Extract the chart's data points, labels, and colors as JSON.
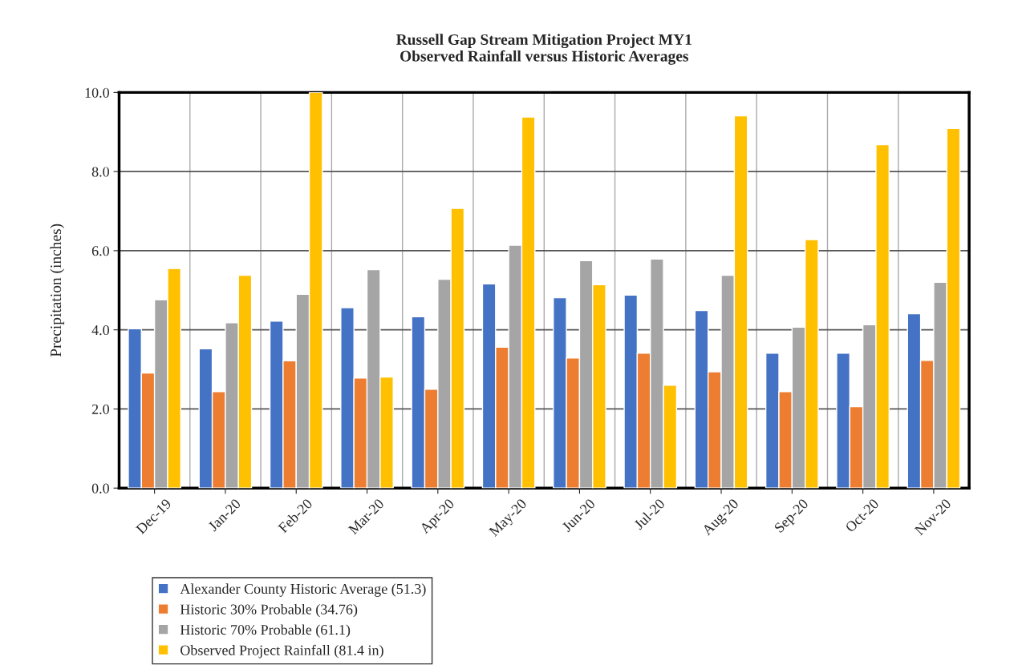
{
  "chart_data": {
    "type": "bar",
    "title": "Russell Gap Stream Mitigation Project MY1\nObserved Rainfall versus Historic Averages",
    "ylabel": "Precipitation (inches)",
    "categories": [
      "Dec-19",
      "Jan-20",
      "Feb-20",
      "Mar-20",
      "Apr-20",
      "May-20",
      "Jun-20",
      "Jul-20",
      "Aug-20",
      "Sep-20",
      "Oct-20",
      "Nov-20"
    ],
    "series": [
      {
        "name": "Alexander County Historic Average (51.3)",
        "color": "#4472c4",
        "values": [
          4.03,
          3.52,
          4.22,
          4.56,
          4.33,
          5.16,
          4.81,
          4.88,
          4.49,
          3.41,
          3.41,
          4.41
        ]
      },
      {
        "name": "Historic 30% Probable (34.76)",
        "color": "#ed7d31",
        "values": [
          2.91,
          2.44,
          3.22,
          2.78,
          2.5,
          3.56,
          3.29,
          3.41,
          2.94,
          2.44,
          2.06,
          3.23
        ]
      },
      {
        "name": "Historic 70% Probable (61.1)",
        "color": "#a5a5a5",
        "values": [
          4.76,
          4.18,
          4.9,
          5.52,
          5.28,
          6.14,
          5.75,
          5.79,
          5.38,
          4.07,
          4.13,
          5.2
        ]
      },
      {
        "name": "Observed Project Rainfall (81.4 in)",
        "color": "#ffc000",
        "values": [
          5.55,
          5.38,
          10.0,
          2.81,
          7.07,
          9.38,
          5.14,
          2.6,
          9.41,
          6.28,
          8.68,
          9.09
        ]
      }
    ],
    "ylim": [
      0,
      10
    ],
    "yticks": [
      {
        "value": 0,
        "label": "0.0"
      },
      {
        "value": 2,
        "label": "2.0"
      },
      {
        "value": 4,
        "label": "4.0"
      },
      {
        "value": 6,
        "label": "6.0"
      },
      {
        "value": 8,
        "label": "8.0"
      },
      {
        "value": 10,
        "label": "10.0"
      }
    ],
    "grid": true,
    "legend": "bottom left"
  }
}
